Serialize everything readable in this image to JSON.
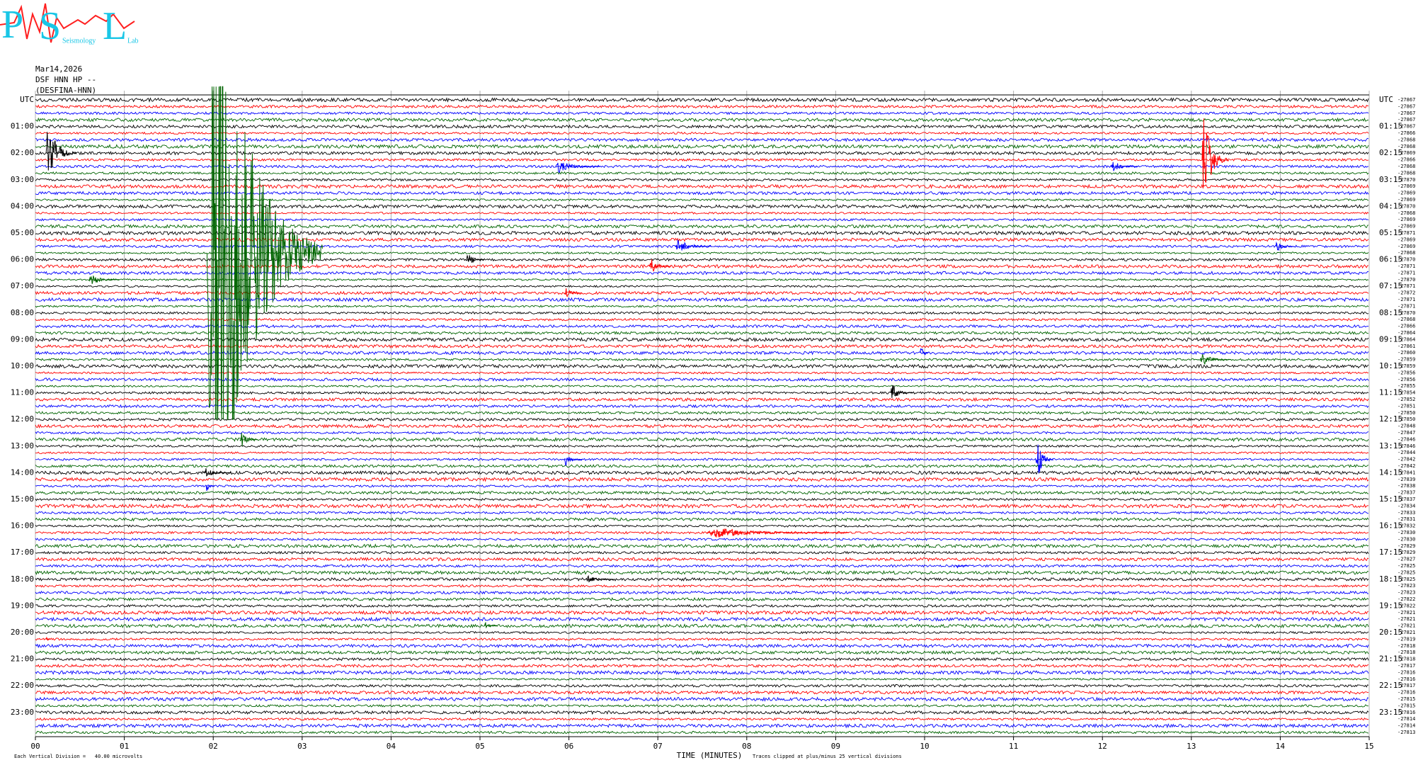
{
  "header": {
    "logo_letters": [
      "P",
      "S",
      "L"
    ],
    "logo_words": [
      "Seismology",
      "Lab"
    ],
    "date": "Mar14,2026",
    "station": "DSF HNN HP --",
    "station_name": "(DESFINA-HNN)"
  },
  "chart_data": {
    "type": "helicorder",
    "x_label": "TIME (MINUTES)",
    "xlim": [
      0,
      15
    ],
    "xticks": [
      {
        "value": 0,
        "label": "00"
      },
      {
        "value": 1,
        "label": "01"
      },
      {
        "value": 2,
        "label": "02"
      },
      {
        "value": 3,
        "label": "03"
      },
      {
        "value": 4,
        "label": "04"
      },
      {
        "value": 5,
        "label": "05"
      },
      {
        "value": 6,
        "label": "06"
      },
      {
        "value": 7,
        "label": "07"
      },
      {
        "value": 8,
        "label": "08"
      },
      {
        "value": 9,
        "label": "09"
      },
      {
        "value": 10,
        "label": "10"
      },
      {
        "value": 11,
        "label": "11"
      },
      {
        "value": 12,
        "label": "12"
      },
      {
        "value": 13,
        "label": "13"
      },
      {
        "value": 14,
        "label": "14"
      },
      {
        "value": 15,
        "label": "15"
      }
    ],
    "grid": true,
    "colors": [
      "#000000",
      "#ff0000",
      "#0000ff",
      "#006400"
    ],
    "left_labels": [
      "UTC",
      "01:00",
      "02:00",
      "03:00",
      "04:00",
      "05:00",
      "06:00",
      "07:00",
      "08:00",
      "09:00",
      "10:00",
      "11:00",
      "12:00",
      "13:00",
      "14:00",
      "15:00",
      "16:00",
      "17:00",
      "18:00",
      "19:00",
      "20:00",
      "21:00",
      "22:00",
      "23:00"
    ],
    "right_labels": [
      "UTC",
      "01:15",
      "02:15",
      "03:15",
      "04:15",
      "05:15",
      "06:15",
      "07:15",
      "08:15",
      "09:15",
      "10:15",
      "11:15",
      "12:15",
      "13:15",
      "14:15",
      "15:15",
      "16:15",
      "17:15",
      "18:15",
      "19:15",
      "20:15",
      "21:15",
      "22:15",
      "23:15"
    ],
    "offsets": [
      -27867,
      -27867,
      -27867,
      -27867,
      -27867,
      -27866,
      -27868,
      -27868,
      -27869,
      -27866,
      -27868,
      -27868,
      -27870,
      -27869,
      -27869,
      -27869,
      -27870,
      -27868,
      -27869,
      -27869,
      -27871,
      -27869,
      -27869,
      -27868,
      -27870,
      -27871,
      -27871,
      -27870,
      -27871,
      -27872,
      -27871,
      -27871,
      -27870,
      -27868,
      -27866,
      -27864,
      -27864,
      -27861,
      -27860,
      -27859,
      -27859,
      -27856,
      -27856,
      -27855,
      -27854,
      -27852,
      -27851,
      -27850,
      -27850,
      -27848,
      -27847,
      -27846,
      -27846,
      -27844,
      -27842,
      -27842,
      -27841,
      -27839,
      -27838,
      -27837,
      -27837,
      -27834,
      -27833,
      -27831,
      -27832,
      -27830,
      -27830,
      -27829,
      -27829,
      -27827,
      -27825,
      -27825,
      -27825,
      -27823,
      -27823,
      -27822,
      -27822,
      -27821,
      -27821,
      -27821,
      -27821,
      -27819,
      -27818,
      -27818,
      -27818,
      -27817,
      -27816,
      -27816,
      -27817,
      -27816,
      -27815,
      -27815,
      -27816,
      -27814,
      -27814,
      -27813
    ],
    "clip_divisions": 25,
    "events": [
      {
        "row": 23,
        "minute": 1.93,
        "amplitude": 60,
        "duration": 1.3
      },
      {
        "row": 8,
        "minute": 0.12,
        "amplitude": 5,
        "duration": 0.35
      },
      {
        "row": 9,
        "minute": 13.12,
        "amplitude": 8,
        "duration": 0.3
      },
      {
        "row": 10,
        "minute": 5.85,
        "amplitude": 1,
        "duration": 0.5
      },
      {
        "row": 10,
        "minute": 12.1,
        "amplitude": 1,
        "duration": 0.3
      },
      {
        "row": 22,
        "minute": 7.2,
        "amplitude": 1.5,
        "duration": 0.4
      },
      {
        "row": 22,
        "minute": 13.95,
        "amplitude": 1,
        "duration": 0.2
      },
      {
        "row": 24,
        "minute": 4.85,
        "amplitude": 1.2,
        "duration": 0.2
      },
      {
        "row": 25,
        "minute": 6.9,
        "amplitude": 1.5,
        "duration": 0.25
      },
      {
        "row": 27,
        "minute": 0.6,
        "amplitude": 1,
        "duration": 0.35
      },
      {
        "row": 29,
        "minute": 5.95,
        "amplitude": 1,
        "duration": 0.2
      },
      {
        "row": 38,
        "minute": 9.95,
        "amplitude": 1.5,
        "duration": 0.1
      },
      {
        "row": 39,
        "minute": 13.1,
        "amplitude": 1,
        "duration": 0.35
      },
      {
        "row": 44,
        "minute": 9.62,
        "amplitude": 1.5,
        "duration": 0.25
      },
      {
        "row": 51,
        "minute": 2.3,
        "amplitude": 1.5,
        "duration": 0.2
      },
      {
        "row": 54,
        "minute": 11.25,
        "amplitude": 4,
        "duration": 0.2
      },
      {
        "row": 54,
        "minute": 5.95,
        "amplitude": 1,
        "duration": 0.2
      },
      {
        "row": 56,
        "minute": 1.9,
        "amplitude": 0.8,
        "duration": 0.3
      },
      {
        "row": 58,
        "minute": 1.92,
        "amplitude": 1,
        "duration": 0.1
      },
      {
        "row": 65,
        "minute": 7.55,
        "amplitude": 0.8,
        "duration": 1.6
      },
      {
        "row": 70,
        "minute": 10.35,
        "amplitude": 0.6,
        "duration": 0.15
      },
      {
        "row": 72,
        "minute": 6.2,
        "amplitude": 0.6,
        "duration": 0.3
      },
      {
        "row": 79,
        "minute": 5.05,
        "amplitude": 0.6,
        "duration": 0.15
      },
      {
        "row": 81,
        "minute": 0.12,
        "amplitude": 0.6,
        "duration": 0.05
      }
    ],
    "footer_left": "Each Vertical Division =   40.00 microvolts",
    "footer_right": "Traces clipped at plus/minus 25 vertical divisions"
  }
}
